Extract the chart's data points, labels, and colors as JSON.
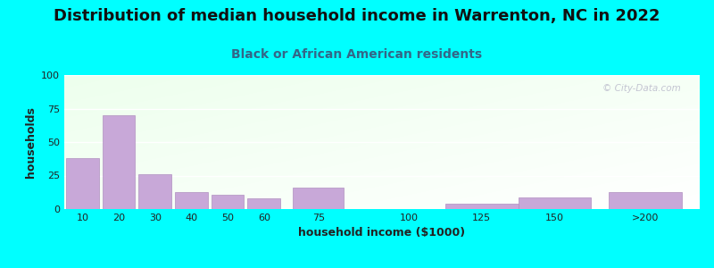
{
  "title": "Distribution of median household income in Warrenton, NC in 2022",
  "subtitle": "Black or African American residents",
  "xlabel": "household income ($1000)",
  "ylabel": "households",
  "background_outer": "#00FFFF",
  "bar_color": "#c8a8d8",
  "bar_edge_color": "#b090c0",
  "ylim": [
    0,
    100
  ],
  "yticks": [
    0,
    25,
    50,
    75,
    100
  ],
  "categories": [
    "10",
    "20",
    "30",
    "40",
    "50",
    "60",
    "75",
    "100",
    "125",
    "150",
    ">200"
  ],
  "values": [
    38,
    70,
    26,
    13,
    11,
    8,
    16,
    0,
    4,
    9,
    13
  ],
  "x_positions": [
    0,
    1,
    2,
    3,
    4,
    5,
    6.5,
    9,
    11,
    13,
    15.5
  ],
  "bar_width": 0.9,
  "title_fontsize": 13,
  "subtitle_fontsize": 10,
  "axis_label_fontsize": 9,
  "tick_fontsize": 8,
  "watermark_text": "© City-Data.com"
}
